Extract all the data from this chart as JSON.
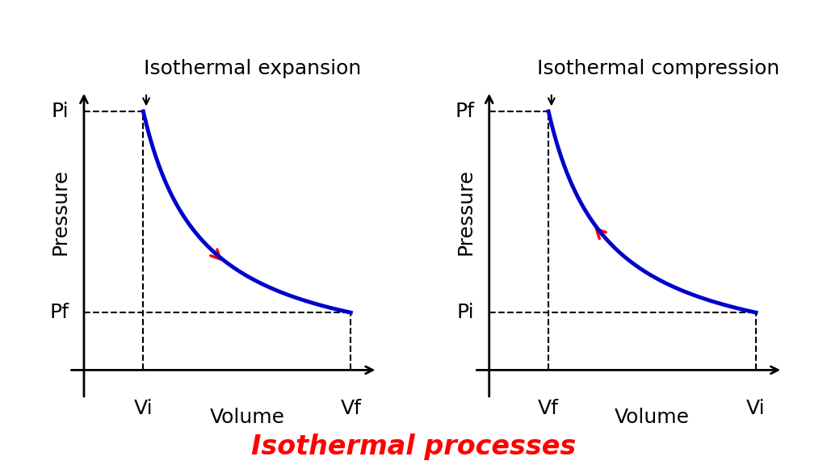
{
  "title": "Isothermal processes",
  "title_color": "#ff0000",
  "title_fontsize": 24,
  "background_color": "#ffffff",
  "curve_color": "#0000cc",
  "curve_linewidth": 3.5,
  "arrow_color": "#ff0000",
  "dashed_color": "#000000",
  "left_title": "Isothermal expansion",
  "right_title": "Isothermal compression",
  "xlabel": "Volume",
  "ylabel": "Pressure",
  "left_x_labels": [
    "Vi",
    "Vf"
  ],
  "right_x_labels": [
    "Vf",
    "Vi"
  ],
  "left_y_labels": [
    "Pi",
    "Pf"
  ],
  "right_y_labels": [
    "Pf",
    "Pi"
  ],
  "vi": 1.0,
  "vf": 4.5,
  "pi": 4.5,
  "pf": 1.0,
  "text_fontsize": 18,
  "title_label_fontsize": 18
}
